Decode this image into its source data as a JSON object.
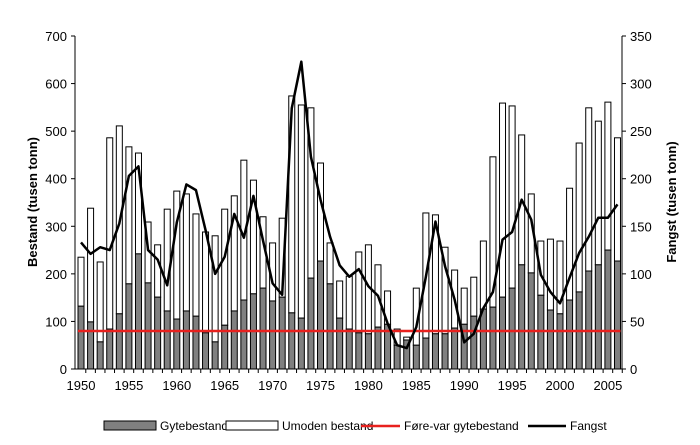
{
  "chart_data": {
    "type": "bar",
    "title": "",
    "xlabel": "",
    "ylabel": "Bestand (tusen tonn)",
    "y2label": "Fangst (tusen tonn)",
    "ylim": [
      0,
      700
    ],
    "y2lim": [
      0,
      350
    ],
    "yticks": [
      "0",
      "100",
      "200",
      "300",
      "400",
      "500",
      "600",
      "700"
    ],
    "y2ticks": [
      "0",
      "50",
      "100",
      "150",
      "200",
      "250",
      "300",
      "350"
    ],
    "xticklabels": [
      "1950",
      "1955",
      "1960",
      "1965",
      "1970",
      "1975",
      "1980",
      "1985",
      "1990",
      "1995",
      "2000",
      "2005"
    ],
    "x": [
      1950,
      1951,
      1952,
      1953,
      1954,
      1955,
      1956,
      1957,
      1958,
      1959,
      1960,
      1961,
      1962,
      1963,
      1964,
      1965,
      1966,
      1967,
      1968,
      1969,
      1970,
      1971,
      1972,
      1973,
      1974,
      1975,
      1976,
      1977,
      1978,
      1979,
      1980,
      1981,
      1982,
      1983,
      1984,
      1985,
      1986,
      1987,
      1988,
      1989,
      1990,
      1991,
      1992,
      1993,
      1994,
      1995,
      1996,
      1997,
      1998,
      1999,
      2000,
      2001,
      2002,
      2003,
      2004,
      2005,
      2006
    ],
    "series": [
      {
        "name": "Gytebestand",
        "type": "stacked-bar",
        "axis": "left",
        "color": "#808080",
        "values": [
          132,
          99,
          57,
          84,
          116,
          179,
          242,
          181,
          151,
          122,
          105,
          122,
          111,
          76,
          57,
          92,
          122,
          145,
          158,
          170,
          143,
          151,
          118,
          107,
          191,
          227,
          179,
          107,
          84,
          76,
          74,
          88,
          94,
          50,
          61,
          50,
          65,
          74,
          74,
          86,
          94,
          111,
          126,
          130,
          151,
          170,
          219,
          202,
          155,
          124,
          116,
          145,
          162,
          206,
          219,
          250,
          227
        ]
      },
      {
        "name": "Umoden bestand",
        "type": "stacked-bar",
        "axis": "left",
        "color": "#ffffff",
        "totals": [
          235,
          338,
          225,
          486,
          511,
          467,
          454,
          309,
          261,
          336,
          374,
          368,
          326,
          288,
          280,
          336,
          364,
          439,
          397,
          320,
          265,
          317,
          574,
          555,
          549,
          433,
          265,
          185,
          195,
          246,
          261,
          219,
          164,
          84,
          67,
          170,
          328,
          324,
          256,
          208,
          170,
          193,
          269,
          446,
          559,
          553,
          492,
          368,
          269,
          273,
          269,
          380,
          475,
          549,
          521,
          561,
          486
        ]
      },
      {
        "name": "Føre-var gytebestand",
        "type": "hline",
        "axis": "left",
        "color": "#e8211e",
        "value": 80
      },
      {
        "name": "Fangst",
        "type": "line",
        "axis": "right",
        "color": "#000000",
        "values": [
          133,
          121,
          128,
          125,
          153,
          203,
          213,
          125,
          115,
          88,
          154,
          194,
          188,
          146,
          100,
          118,
          163,
          138,
          182,
          135,
          90,
          78,
          274,
          323,
          223,
          178,
          139,
          109,
          97,
          105,
          87,
          77,
          48,
          25,
          22,
          44,
          97,
          155,
          108,
          73,
          28,
          37,
          64,
          81,
          136,
          144,
          178,
          157,
          99,
          81,
          69,
          96,
          122,
          139,
          159,
          159,
          173
        ]
      }
    ],
    "legend": "bottom"
  }
}
